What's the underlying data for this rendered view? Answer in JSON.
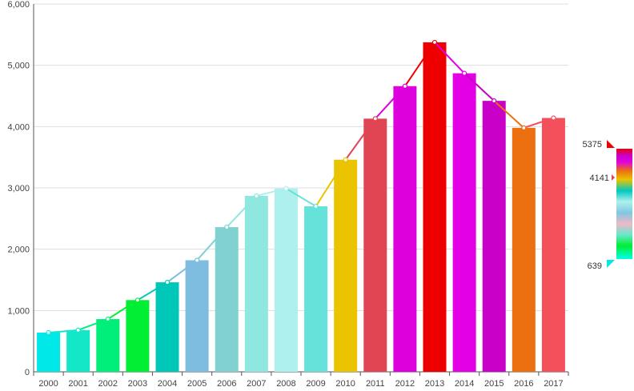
{
  "chart_data": {
    "type": "bar",
    "categories": [
      "2000",
      "2001",
      "2002",
      "2003",
      "2004",
      "2005",
      "2006",
      "2007",
      "2008",
      "2009",
      "2010",
      "2011",
      "2012",
      "2013",
      "2014",
      "2015",
      "2016",
      "2017"
    ],
    "series": [
      {
        "type": "bar",
        "values": [
          639,
          680,
          860,
          1170,
          1460,
          1820,
          2360,
          2870,
          2990,
          2700,
          3460,
          4130,
          4660,
          5375,
          4870,
          4420,
          3980,
          4141
        ]
      },
      {
        "type": "line",
        "values": [
          639,
          680,
          860,
          1170,
          1460,
          1820,
          2360,
          2870,
          2990,
          2700,
          3460,
          4130,
          4660,
          5375,
          4870,
          4420,
          3980,
          4141
        ]
      }
    ],
    "ylim": [
      0,
      6000
    ],
    "yticks": [
      0,
      1000,
      2000,
      3000,
      4000,
      5000,
      6000
    ],
    "ytick_labels": [
      "0",
      "1,000",
      "2,000",
      "3,000",
      "4,000",
      "5,000",
      "6,000"
    ],
    "grid": true,
    "colors": [
      "#00e8e8",
      "#12e8c8",
      "#00ee7a",
      "#00ee33",
      "#00c8b8",
      "#7fbde0",
      "#7fd2cf",
      "#8ee8e0",
      "#aef0ee",
      "#66e2da",
      "#eac400",
      "#e04553",
      "#dd00dd",
      "#ee0000",
      "#e400e4",
      "#c800c8",
      "#ec7010",
      "#f4505c"
    ],
    "visual_map": {
      "min": 639,
      "max": 5375,
      "marker": 4141,
      "labels": {
        "max": "5375",
        "marker": "4141",
        "min": "639"
      }
    }
  }
}
